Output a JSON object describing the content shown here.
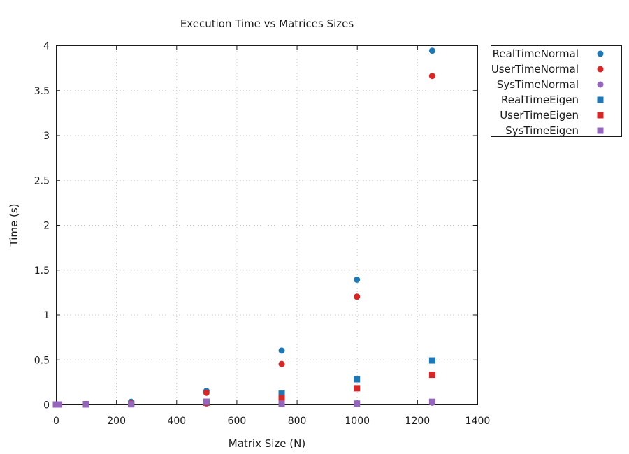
{
  "chart_data": {
    "type": "scatter",
    "title": "Execution Time vs Matrices Sizes",
    "xlabel": "Matrix Size (N)",
    "ylabel": "Time (s)",
    "xlim": [
      0,
      1400
    ],
    "ylim": [
      0,
      4
    ],
    "xticks": [
      "0",
      "200",
      "400",
      "600",
      "800",
      "1000",
      "1200",
      "1400"
    ],
    "yticks": [
      "0",
      "0.5",
      "1",
      "1.5",
      "2",
      "2.5",
      "3",
      "3.5",
      "4"
    ],
    "grid": true,
    "legend_position": "outside-top-right",
    "series": [
      {
        "name": "RealTimeNormal",
        "marker": "circle",
        "color": "#1f77b4",
        "x": [
          0,
          10,
          100,
          250,
          500,
          750,
          1000,
          1250
        ],
        "y": [
          0.0,
          0.0,
          0.005,
          0.03,
          0.15,
          0.6,
          1.39,
          3.94
        ]
      },
      {
        "name": "UserTimeNormal",
        "marker": "circle",
        "color": "#d62728",
        "x": [
          0,
          10,
          100,
          250,
          500,
          750,
          1000,
          1250
        ],
        "y": [
          0.0,
          0.0,
          0.004,
          0.02,
          0.13,
          0.45,
          1.2,
          3.66
        ]
      },
      {
        "name": "SysTimeNormal",
        "marker": "circle",
        "color": "#9467bd",
        "x": [
          0,
          10,
          100,
          250,
          500,
          750,
          1000,
          1250
        ],
        "y": [
          0.0,
          0.0,
          0.002,
          0.003,
          0.01,
          0.01,
          0.01,
          0.02
        ]
      },
      {
        "name": "RealTimeEigen",
        "marker": "square",
        "color": "#1f77b4",
        "x": [
          0,
          10,
          100,
          250,
          500,
          750,
          1000,
          1250
        ],
        "y": [
          0.0,
          0.0,
          0.003,
          0.01,
          0.03,
          0.12,
          0.28,
          0.49
        ]
      },
      {
        "name": "UserTimeEigen",
        "marker": "square",
        "color": "#d62728",
        "x": [
          0,
          10,
          100,
          250,
          500,
          750,
          1000,
          1250
        ],
        "y": [
          0.0,
          0.0,
          0.002,
          0.005,
          0.02,
          0.07,
          0.18,
          0.33
        ]
      },
      {
        "name": "SysTimeEigen",
        "marker": "square",
        "color": "#9467bd",
        "x": [
          0,
          10,
          100,
          250,
          500,
          750,
          1000,
          1250
        ],
        "y": [
          0.0,
          0.0,
          0.001,
          0.002,
          0.03,
          0.01,
          0.01,
          0.03
        ]
      }
    ]
  }
}
